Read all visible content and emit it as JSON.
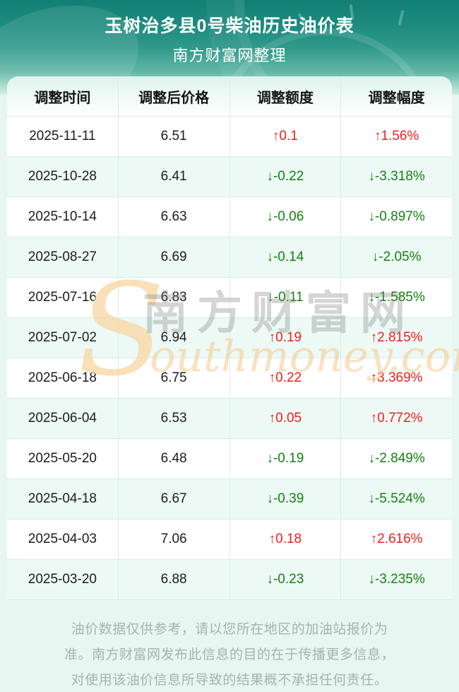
{
  "header": {
    "title": "玉树治多县0号柴油历史油价表",
    "subtitle": "南方财富网整理"
  },
  "table": {
    "columns": [
      "调整时间",
      "调整后价格",
      "调整额度",
      "调整幅度"
    ],
    "rows": [
      {
        "date": "2025-11-11",
        "price": "6.51",
        "change": "↑0.1",
        "pct": "↑1.56%",
        "direction": "up"
      },
      {
        "date": "2025-10-28",
        "price": "6.41",
        "change": "↓-0.22",
        "pct": "↓-3.318%",
        "direction": "down"
      },
      {
        "date": "2025-10-14",
        "price": "6.63",
        "change": "↓-0.06",
        "pct": "↓-0.897%",
        "direction": "down"
      },
      {
        "date": "2025-08-27",
        "price": "6.69",
        "change": "↓-0.14",
        "pct": "↓-2.05%",
        "direction": "down"
      },
      {
        "date": "2025-07-16",
        "price": "6.83",
        "change": "↓-0.11",
        "pct": "↓-1.585%",
        "direction": "down"
      },
      {
        "date": "2025-07-02",
        "price": "6.94",
        "change": "↑0.19",
        "pct": "↑2.815%",
        "direction": "up"
      },
      {
        "date": "2025-06-18",
        "price": "6.75",
        "change": "↑0.22",
        "pct": "↑3.369%",
        "direction": "up"
      },
      {
        "date": "2025-06-04",
        "price": "6.53",
        "change": "↑0.05",
        "pct": "↑0.772%",
        "direction": "up"
      },
      {
        "date": "2025-05-20",
        "price": "6.48",
        "change": "↓-0.19",
        "pct": "↓-2.849%",
        "direction": "down"
      },
      {
        "date": "2025-04-18",
        "price": "6.67",
        "change": "↓-0.39",
        "pct": "↓-5.524%",
        "direction": "down"
      },
      {
        "date": "2025-04-03",
        "price": "7.06",
        "change": "↑0.18",
        "pct": "↑2.616%",
        "direction": "up"
      },
      {
        "date": "2025-03-20",
        "price": "6.88",
        "change": "↓-0.23",
        "pct": "↓-3.235%",
        "direction": "down"
      }
    ]
  },
  "chart_data": {
    "type": "table",
    "title": "玉树治多县0号柴油历史油价表",
    "subtitle": "南方财富网整理",
    "columns": [
      "调整时间",
      "调整后价格",
      "调整额度",
      "调整幅度"
    ],
    "rows": [
      [
        "2025-11-11",
        "6.51",
        "↑0.1",
        "↑1.56%"
      ],
      [
        "2025-10-28",
        "6.41",
        "↓-0.22",
        "↓-3.318%"
      ],
      [
        "2025-10-14",
        "6.63",
        "↓-0.06",
        "↓-0.897%"
      ],
      [
        "2025-08-27",
        "6.69",
        "↓-0.14",
        "↓-2.05%"
      ],
      [
        "2025-07-16",
        "6.83",
        "↓-0.11",
        "↓-1.585%"
      ],
      [
        "2025-07-02",
        "6.94",
        "↑0.19",
        "↑2.815%"
      ],
      [
        "2025-06-18",
        "6.75",
        "↑0.22",
        "↑3.369%"
      ],
      [
        "2025-06-04",
        "6.53",
        "↑0.05",
        "↑0.772%"
      ],
      [
        "2025-05-20",
        "6.48",
        "↓-0.19",
        "↓-2.849%"
      ],
      [
        "2025-04-18",
        "6.67",
        "↓-0.39",
        "↓-5.524%"
      ],
      [
        "2025-04-03",
        "7.06",
        "↑0.18",
        "↑2.616%"
      ],
      [
        "2025-03-20",
        "6.88",
        "↓-0.23",
        "↓-3.235%"
      ]
    ]
  },
  "watermark": {
    "s_letter": "S",
    "cn_text": "南方财富网",
    "en_text": "outhmoney.com"
  },
  "disclaimer": {
    "lines": [
      "油价数据仅供参考，请以您所在地区的加油站报价为",
      "准。南方财富网发布此信息的目的在于传播更多信息，",
      "对使用该油价信息所导致的结果概不承担任何责任。"
    ]
  },
  "colors": {
    "up_red": "#f51d1d",
    "down_green": "#12830f",
    "header_teal_top": "#127f74",
    "header_teal_bottom": "#cfece3",
    "page_bg": "#e7f6f1",
    "alt_row_bg": "#ecf9f5",
    "grid_line": "#d6eee7",
    "watermark_orange": "#f6c98b"
  }
}
